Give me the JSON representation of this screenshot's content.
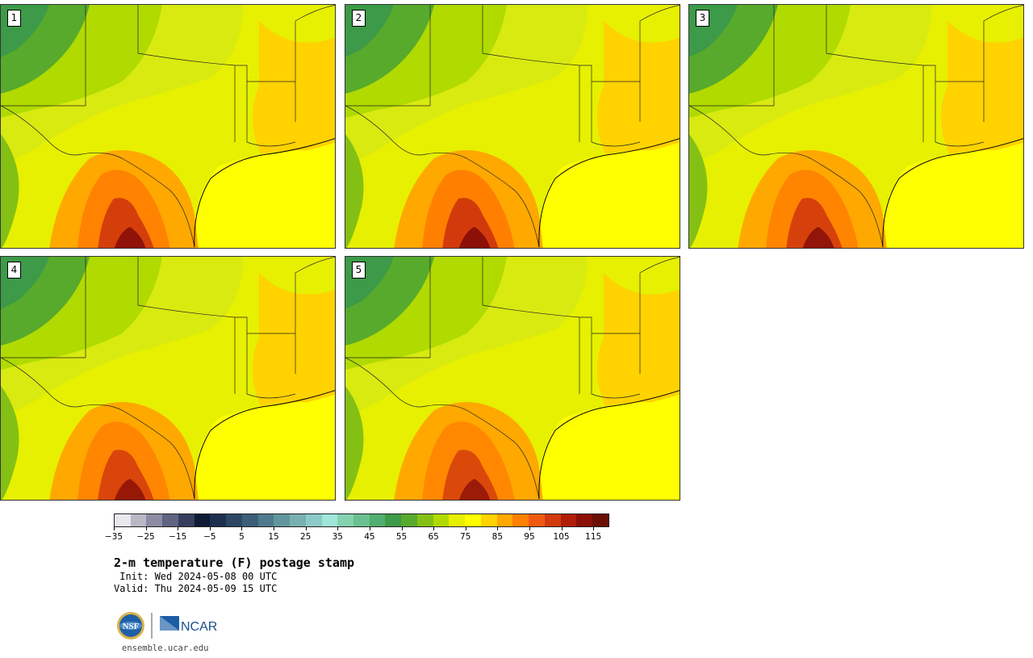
{
  "panels": [
    {
      "label": "1",
      "heat": 0.95
    },
    {
      "label": "2",
      "heat": 1.0
    },
    {
      "label": "3",
      "heat": 0.9
    },
    {
      "label": "4",
      "heat": 0.85
    },
    {
      "label": "5",
      "heat": 0.8
    }
  ],
  "colorbar": {
    "colors": [
      "#e8e8ee",
      "#b8b8c6",
      "#8c8ca4",
      "#5e6482",
      "#363e5e",
      "#0e1a34",
      "#1c2e4e",
      "#2c4664",
      "#3c5e78",
      "#4e7a8c",
      "#62969e",
      "#78b0b0",
      "#8ccaca",
      "#a0e6da",
      "#84d2b0",
      "#6ac090",
      "#50ae6e",
      "#3c9a48",
      "#58aa2c",
      "#84c014",
      "#b0da00",
      "#e6f000",
      "#ffff00",
      "#ffd200",
      "#ffa800",
      "#ff8000",
      "#f05a10",
      "#d23a0c",
      "#b01e0a",
      "#8c1008",
      "#6a0e06"
    ],
    "tick_labels": [
      "−35",
      "−25",
      "−15",
      "−5",
      "5",
      "15",
      "25",
      "35",
      "45",
      "55",
      "65",
      "75",
      "85",
      "95",
      "105",
      "115"
    ]
  },
  "title": "2-m temperature (F) postage stamp",
  "init": " Init: Wed 2024-05-08 00 UTC",
  "valid": "Valid: Thu 2024-05-09 15 UTC",
  "logos": {
    "nsf": "NSF",
    "ncar": "NCAR"
  },
  "site": "ensemble.ucar.edu"
}
